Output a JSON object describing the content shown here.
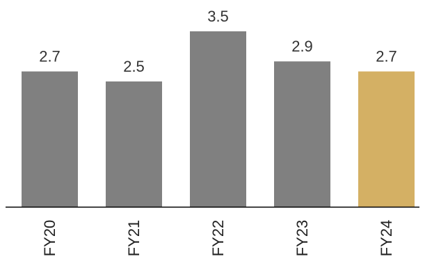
{
  "chart_data": {
    "type": "bar",
    "categories": [
      "FY20",
      "FY21",
      "FY22",
      "FY23",
      "FY24"
    ],
    "values": [
      2.7,
      2.5,
      3.5,
      2.9,
      2.7
    ],
    "data_labels": [
      "2.7",
      "2.5",
      "3.5",
      "2.9",
      "2.7"
    ],
    "colors": [
      "#808080",
      "#808080",
      "#808080",
      "#808080",
      "#d4b064"
    ],
    "baseline_color": "#000000",
    "title": "",
    "xlabel": "",
    "ylabel": "",
    "ylim": [
      0,
      3.5
    ],
    "grid": false,
    "legend": "none",
    "tick_label_orientation": "vertical"
  }
}
